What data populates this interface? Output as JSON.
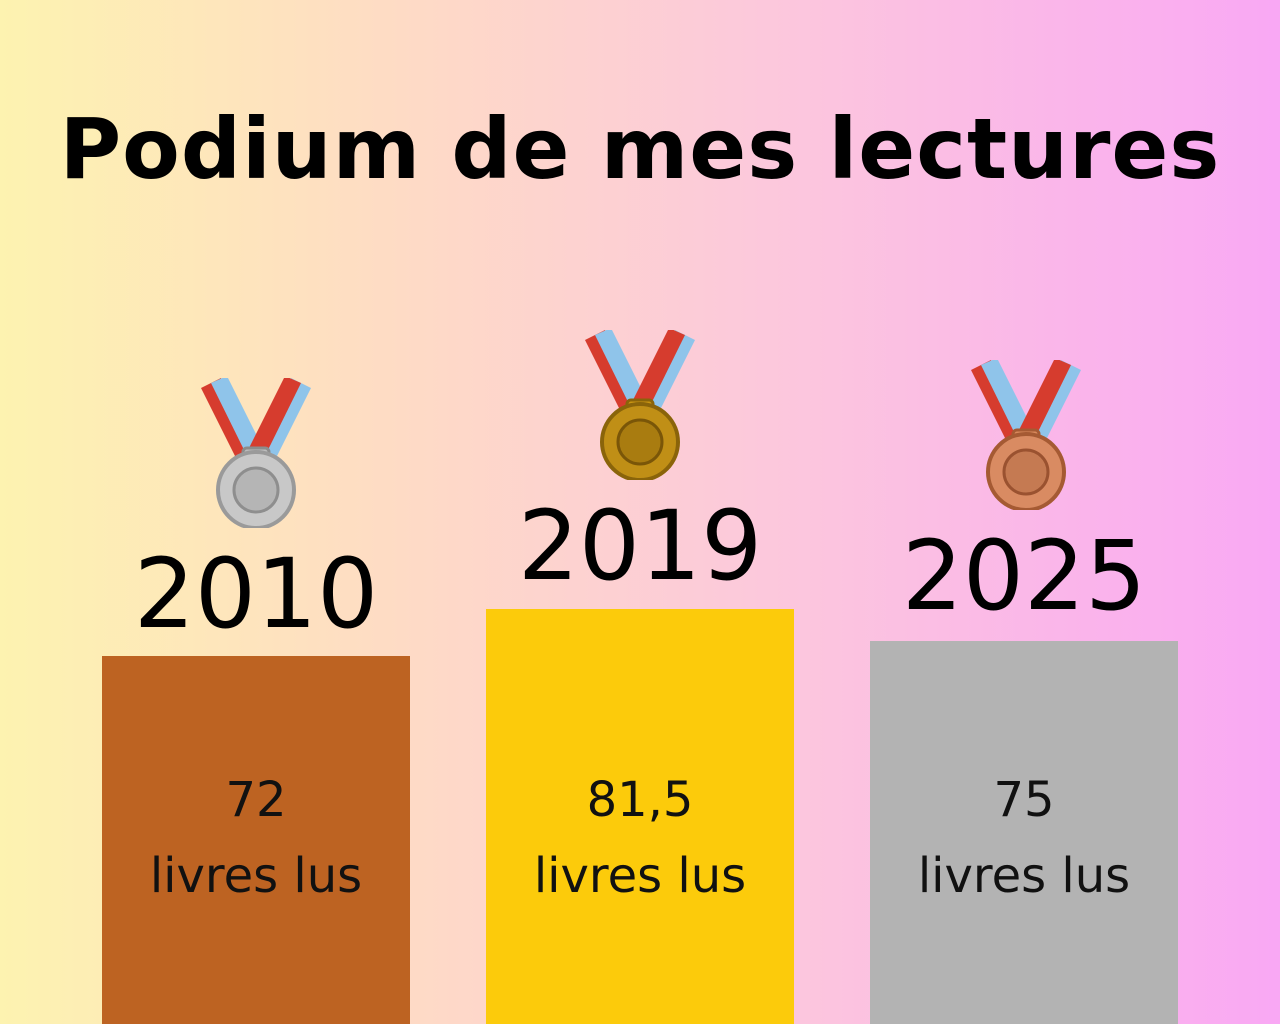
{
  "title": "Podium de mes lectures",
  "chart_data": {
    "type": "bar",
    "categories": [
      "2010",
      "2019",
      "2025"
    ],
    "values": [
      72,
      81.5,
      75
    ],
    "value_labels": [
      "72",
      "81,5",
      "75"
    ],
    "unit_label": "livres lus",
    "bar_colors": [
      "#bd6322",
      "#fccb0b",
      "#b3b3b3"
    ],
    "medals": [
      "silver-medal-icon",
      "gold-medal-icon",
      "bronze-medal-icon"
    ],
    "ylim": [
      0,
      81.5
    ]
  }
}
